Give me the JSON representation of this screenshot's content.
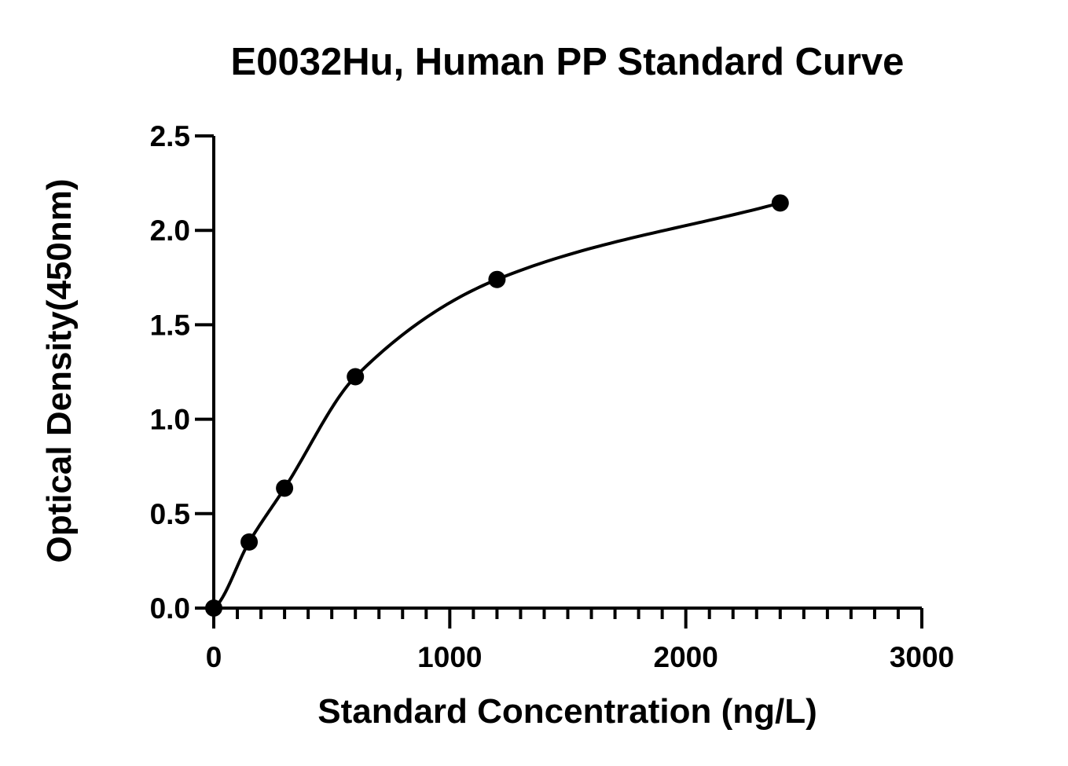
{
  "chart_data": {
    "type": "scatter",
    "title": "E0032Hu, Human PP Standard Curve",
    "xlabel": "Standard Concentration (ng/L)",
    "ylabel": "Optical Density(450nm)",
    "xlim": [
      0,
      3000
    ],
    "ylim": [
      0,
      2.5
    ],
    "x_ticks": [
      "0",
      "1000",
      "2000",
      "3000"
    ],
    "y_ticks": [
      "0.0",
      "0.5",
      "1.0",
      "1.5",
      "2.0",
      "2.5"
    ],
    "x_minor_step": 100,
    "grid": false,
    "legend": "none",
    "series": [
      {
        "x": [
          0,
          150,
          300,
          600,
          1200,
          2400
        ],
        "y": [
          0.0,
          0.35,
          0.635,
          1.225,
          1.74,
          2.145
        ],
        "marker": "filled-circle",
        "fit": "four-parameter logistic curve"
      }
    ],
    "colors": {
      "ink": "#000000",
      "background": "#ffffff"
    }
  }
}
